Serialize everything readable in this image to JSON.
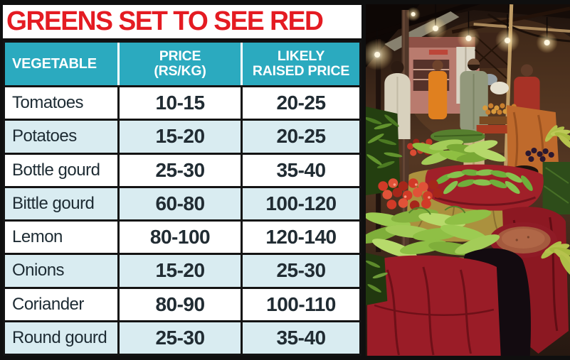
{
  "title": "GREENS SET TO SEE RED",
  "colors": {
    "title_red": "#e41b22",
    "header_teal": "#2baabf",
    "row_alt_blue": "#d9ecf1",
    "row_white": "#ffffff",
    "text_dark": "#1f2c34",
    "frame_black": "#121212"
  },
  "chart_data": {
    "type": "table",
    "title": "GREENS SET TO SEE RED",
    "columns": [
      "VEGETABLE",
      "PRICE\n(RS/KG)",
      "LIKELY\nRAISED PRICE"
    ],
    "rows": [
      [
        "Tomatoes",
        "10-15",
        "20-25"
      ],
      [
        "Potatoes",
        "15-20",
        "20-25"
      ],
      [
        "Bottle gourd",
        "25-30",
        "35-40"
      ],
      [
        "Bittle gourd",
        "60-80",
        "100-120"
      ],
      [
        "Lemon",
        "80-100",
        "120-140"
      ],
      [
        "Onions",
        "15-20",
        "25-30"
      ],
      [
        "Coriander",
        "80-90",
        "100-110"
      ],
      [
        "Round gourd",
        "25-30",
        "35-40"
      ]
    ]
  }
}
